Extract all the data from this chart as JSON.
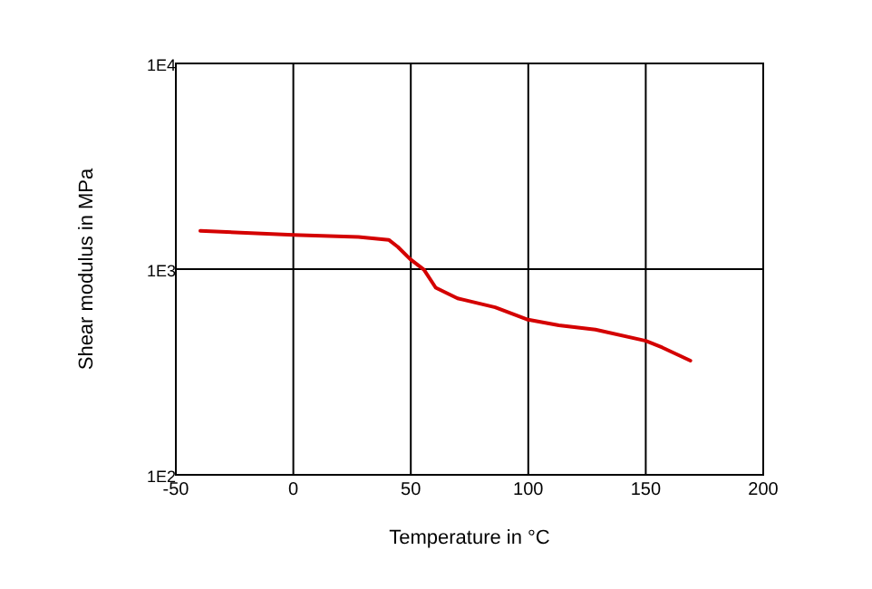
{
  "chart_data": {
    "type": "line",
    "xlabel": "Temperature in °C",
    "ylabel": "Shear modulus in MPa",
    "log": "y",
    "series": [
      {
        "color": "#d40000",
        "x": [
          -39.6,
          0,
          27.7,
          40.6,
          44.5,
          49.7,
          55.6,
          60.6,
          69.9,
          85.9,
          99.4,
          113,
          128.6,
          150,
          157,
          169
        ],
        "values": [
          1535,
          1465,
          1435,
          1388,
          1282,
          1120,
          993,
          812,
          721,
          652,
          570,
          533,
          508,
          448,
          416,
          359
        ]
      }
    ],
    "xlim": [
      -50,
      200
    ],
    "xticks": [
      -50,
      0,
      50,
      100,
      150,
      200
    ],
    "ylim": [
      100,
      10000
    ],
    "yticks": [
      {
        "value": 100,
        "label": "1E2"
      },
      {
        "value": 1000,
        "label": "1E3"
      },
      {
        "value": 10000,
        "label": "1E4"
      }
    ],
    "grid": true,
    "marker": "none",
    "line_style": "solid"
  }
}
